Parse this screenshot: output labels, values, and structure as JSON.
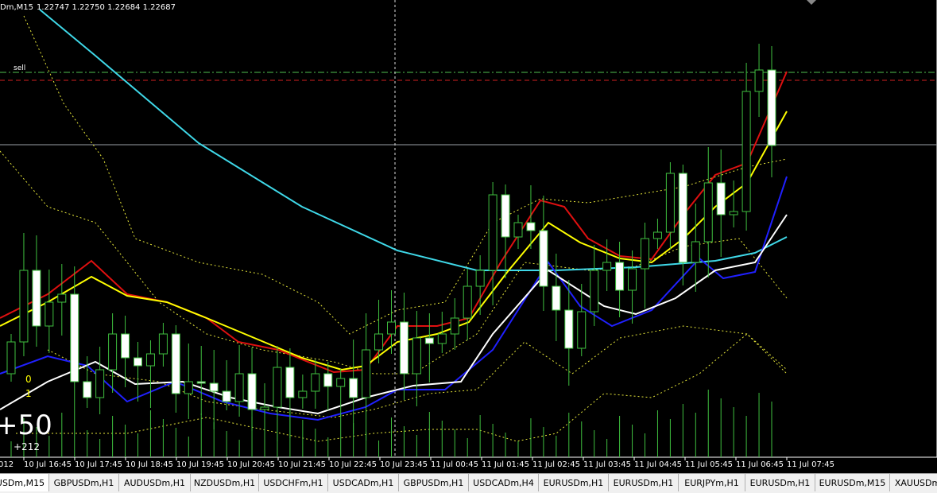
{
  "header": {
    "symbol": "Dm,M15",
    "prices": "1.22747 1.22750 1.22684 1.22687"
  },
  "chart_labels": {
    "sell": "sell",
    "level_0": "0",
    "level_1": "1",
    "profit": "+50",
    "points": "+212"
  },
  "time_axis": [
    "012",
    "10 Jul 16:45",
    "10 Jul 17:45",
    "10 Jul 18:45",
    "10 Jul 19:45",
    "10 Jul 20:45",
    "10 Jul 21:45",
    "10 Jul 22:45",
    "10 Jul 23:45",
    "11 Jul 00:45",
    "11 Jul 01:45",
    "11 Jul 02:45",
    "11 Jul 03:45",
    "11 Jul 04:45",
    "11 Jul 05:45",
    "11 Jul 06:45",
    "11 Jul 07:45"
  ],
  "tabs": [
    "USDm,M15",
    "GBPUSDm,H1",
    "AUDUSDm,H1",
    "NZDUSDm,H1",
    "USDCHFm,H1",
    "USDCADm,H1",
    "GBPUSDm,H1",
    "USDCADm,H4",
    "EURUSDm,H1",
    "EURUSDm,H1",
    "EURJPYm,H1",
    "EURUSDm,H1",
    "EURUSDm,M15",
    "XAUUSDm"
  ]
}
